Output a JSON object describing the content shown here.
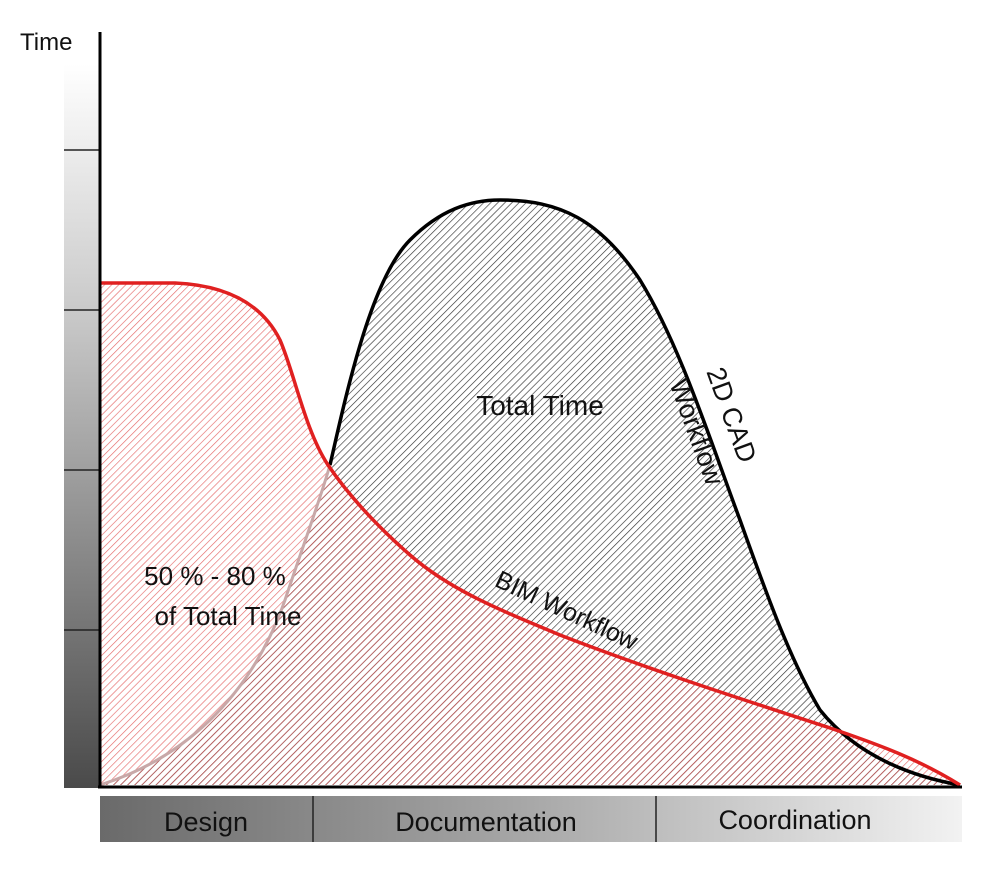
{
  "chart_data": {
    "type": "area",
    "ylabel": "Time",
    "phases": [
      "Design",
      "Documentation",
      "Coordination"
    ],
    "series": [
      {
        "name": "2D CAD Workflow",
        "color": "#000000"
      },
      {
        "name": "BIM Workflow",
        "color": "#e02020"
      }
    ],
    "annotations": {
      "total_time": "Total Time",
      "share_line1": "50 % - 80 %",
      "share_line2": "of Total Time",
      "cad_line1": "2D CAD",
      "cad_line2": "Workflow",
      "bim": "BIM Workflow"
    },
    "grid": false,
    "y_ticks": false
  }
}
